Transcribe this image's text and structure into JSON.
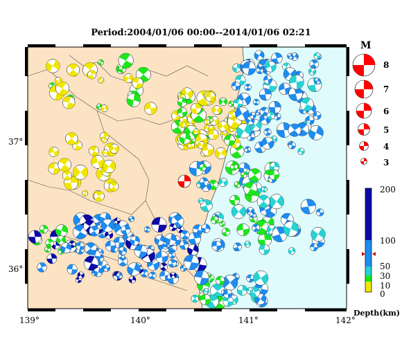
{
  "title": "Period:2004/01/06 00:00--2014/01/06 02:21",
  "x_ticks": [
    "139°",
    "140°",
    "141°",
    "142°"
  ],
  "y_ticks": [
    "36°",
    "37°"
  ],
  "magnitude_legend": {
    "header": "M",
    "labels": [
      "8",
      "7",
      "6",
      "5",
      "4",
      "3"
    ]
  },
  "depth_colorbar": {
    "labels": [
      "200",
      "100",
      "50",
      "30",
      "10",
      "0"
    ],
    "unit_label": "Depth(km)",
    "colors": {
      "deep": "#0a0aa8",
      "mid": "#1e8cf0",
      "cyan": "#28d2d2",
      "green": "#1ee61e",
      "yellow": "#f0e600"
    }
  },
  "colors": {
    "land": "#fbe3c3",
    "sea": "#e0fbfb",
    "highlight": "#ff0000"
  }
}
